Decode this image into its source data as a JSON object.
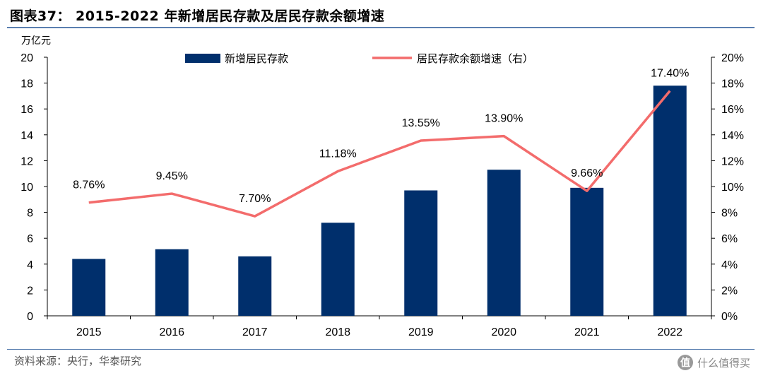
{
  "header": {
    "title": "图表37： 2015-2022 年新增居民存款及居民存款余额增速"
  },
  "footer": {
    "source": "资料来源：央行，华泰研究",
    "watermark": "什么值得买",
    "watermark_logo": "值"
  },
  "colors": {
    "bar": "#002f6c",
    "line": "#f36c6c",
    "axis": "#000000"
  },
  "chart_data": {
    "type": "bar",
    "title": "2015-2022 年新增居民存款及居民存款余额增速",
    "categories": [
      "2015",
      "2016",
      "2017",
      "2018",
      "2019",
      "2020",
      "2021",
      "2022"
    ],
    "y_left": {
      "unit_label": "万亿元",
      "range": [
        0,
        20
      ],
      "ticks": [
        "0",
        "2",
        "4",
        "6",
        "8",
        "10",
        "12",
        "14",
        "16",
        "18",
        "20"
      ]
    },
    "y_right": {
      "range": [
        0,
        20
      ],
      "ticks": [
        "0%",
        "2%",
        "4%",
        "6%",
        "8%",
        "10%",
        "12%",
        "14%",
        "16%",
        "18%",
        "20%"
      ]
    },
    "series": [
      {
        "name": "新增居民存款",
        "type": "bar",
        "axis": "left",
        "values": [
          4.4,
          5.15,
          4.6,
          7.2,
          9.7,
          11.3,
          9.9,
          17.8
        ]
      },
      {
        "name": "居民存款余额增速（右）",
        "type": "line",
        "axis": "right",
        "values": [
          8.76,
          9.45,
          7.7,
          11.18,
          13.55,
          13.9,
          9.66,
          17.4
        ],
        "labels": [
          "8.76%",
          "9.45%",
          "7.70%",
          "11.18%",
          "13.55%",
          "13.90%",
          "9.66%",
          "17.40%"
        ]
      }
    ],
    "legend_position": "top",
    "grid": false
  }
}
